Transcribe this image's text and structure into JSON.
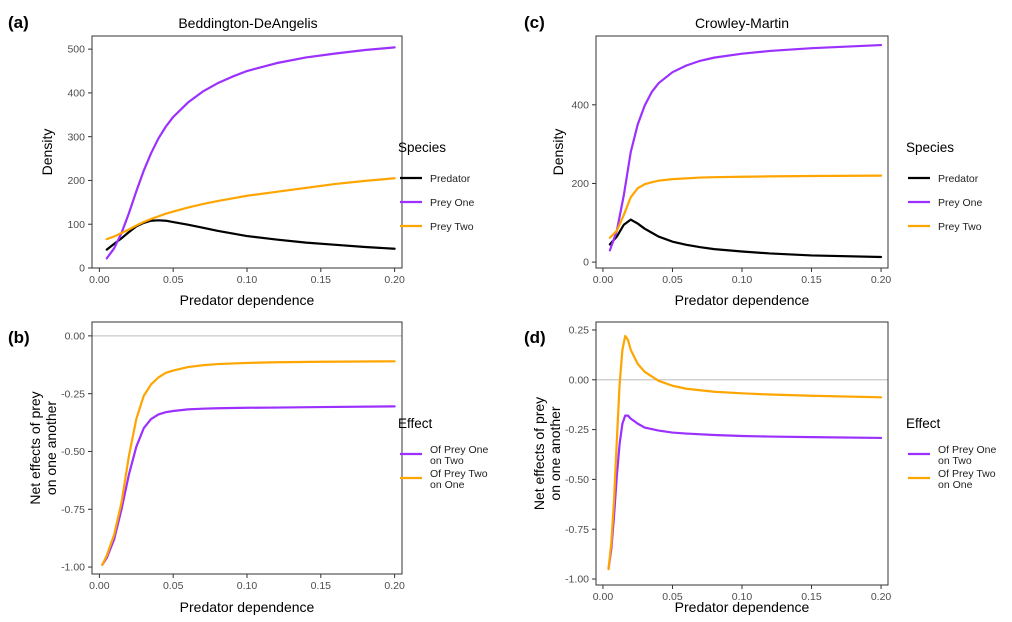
{
  "chart_data": [
    {
      "panel": "(a)",
      "type": "line",
      "title": "Beddington-DeAngelis",
      "xlabel": "Predator dependence",
      "ylabel": "Density",
      "xlim": [
        -0.005,
        0.205
      ],
      "ylim": [
        0,
        530
      ],
      "xticks": [
        0.0,
        0.05,
        0.1,
        0.15,
        0.2
      ],
      "xtick_labels": [
        "0.00",
        "0.05",
        "0.10",
        "0.15",
        "0.20"
      ],
      "yticks": [
        0,
        100,
        200,
        300,
        400,
        500
      ],
      "ytick_labels": [
        "0",
        "100",
        "200",
        "300",
        "400",
        "500"
      ],
      "zero_line": false,
      "legend": {
        "title": "Species",
        "placement": "right"
      },
      "series": [
        {
          "name": "Predator",
          "color": "#000000",
          "x": [
            0.005,
            0.01,
            0.015,
            0.02,
            0.025,
            0.03,
            0.035,
            0.04,
            0.045,
            0.05,
            0.06,
            0.07,
            0.08,
            0.09,
            0.1,
            0.12,
            0.14,
            0.16,
            0.18,
            0.2
          ],
          "y": [
            42,
            55,
            68,
            82,
            95,
            103,
            108,
            109,
            108,
            105,
            99,
            92,
            85,
            79,
            73,
            65,
            58,
            53,
            48,
            44
          ]
        },
        {
          "name": "Prey One",
          "color": "#9b30ff",
          "x": [
            0.005,
            0.01,
            0.015,
            0.02,
            0.025,
            0.03,
            0.035,
            0.04,
            0.045,
            0.05,
            0.06,
            0.07,
            0.08,
            0.09,
            0.1,
            0.12,
            0.14,
            0.16,
            0.18,
            0.2
          ],
          "y": [
            22,
            45,
            80,
            125,
            175,
            222,
            262,
            296,
            323,
            345,
            378,
            403,
            422,
            437,
            450,
            468,
            481,
            490,
            498,
            504
          ]
        },
        {
          "name": "Prey Two",
          "color": "#ffa500",
          "x": [
            0.005,
            0.01,
            0.015,
            0.02,
            0.025,
            0.03,
            0.035,
            0.04,
            0.045,
            0.05,
            0.06,
            0.07,
            0.08,
            0.09,
            0.1,
            0.12,
            0.14,
            0.16,
            0.18,
            0.2
          ],
          "y": [
            66,
            72,
            80,
            88,
            97,
            105,
            112,
            118,
            124,
            129,
            138,
            146,
            153,
            159,
            165,
            174,
            183,
            192,
            199,
            205
          ]
        }
      ]
    },
    {
      "panel": "(b)",
      "type": "line",
      "title": "",
      "xlabel": "Predator dependence",
      "ylabel": "Net effects of prey on one another",
      "ylabel_lines": [
        "Net effects of prey",
        "on one another"
      ],
      "xlim": [
        -0.005,
        0.205
      ],
      "ylim": [
        -1.03,
        0.06
      ],
      "xticks": [
        0.0,
        0.05,
        0.1,
        0.15,
        0.2
      ],
      "xtick_labels": [
        "0.00",
        "0.05",
        "0.10",
        "0.15",
        "0.20"
      ],
      "yticks": [
        0.0,
        -0.25,
        -0.5,
        -0.75,
        -1.0
      ],
      "ytick_labels": [
        "0.00",
        "-0.25",
        "-0.50",
        "-0.75",
        "-1.00"
      ],
      "zero_line": true,
      "legend": {
        "title": "Effect",
        "placement": "right"
      },
      "series": [
        {
          "name": "Of Prey One on Two",
          "name_lines": [
            "Of Prey One",
            "on Two"
          ],
          "color": "#9b30ff",
          "x": [
            0.002,
            0.005,
            0.01,
            0.015,
            0.02,
            0.025,
            0.03,
            0.035,
            0.04,
            0.045,
            0.05,
            0.06,
            0.07,
            0.08,
            0.1,
            0.12,
            0.15,
            0.2
          ],
          "y": [
            -0.99,
            -0.96,
            -0.88,
            -0.75,
            -0.6,
            -0.48,
            -0.4,
            -0.36,
            -0.34,
            -0.33,
            -0.325,
            -0.318,
            -0.315,
            -0.313,
            -0.311,
            -0.31,
            -0.308,
            -0.305
          ]
        },
        {
          "name": "Of Prey Two on One",
          "name_lines": [
            "Of Prey Two",
            "on One"
          ],
          "color": "#ffa500",
          "x": [
            0.002,
            0.005,
            0.01,
            0.015,
            0.02,
            0.025,
            0.03,
            0.035,
            0.04,
            0.045,
            0.05,
            0.06,
            0.07,
            0.08,
            0.1,
            0.12,
            0.15,
            0.2
          ],
          "y": [
            -0.99,
            -0.95,
            -0.86,
            -0.72,
            -0.52,
            -0.36,
            -0.26,
            -0.21,
            -0.18,
            -0.16,
            -0.15,
            -0.135,
            -0.127,
            -0.122,
            -0.117,
            -0.114,
            -0.112,
            -0.11
          ]
        }
      ]
    },
    {
      "panel": "(c)",
      "type": "line",
      "title": "Crowley-Martin",
      "xlabel": "Predator dependence",
      "ylabel": "Density",
      "xlim": [
        -0.005,
        0.205
      ],
      "ylim": [
        -15,
        575
      ],
      "xticks": [
        0.0,
        0.05,
        0.1,
        0.15,
        0.2
      ],
      "xtick_labels": [
        "0.00",
        "0.05",
        "0.10",
        "0.15",
        "0.20"
      ],
      "yticks": [
        0,
        200,
        400
      ],
      "ytick_labels": [
        "0",
        "200",
        "400"
      ],
      "zero_line": false,
      "legend": {
        "title": "Species",
        "placement": "right"
      },
      "series": [
        {
          "name": "Predator",
          "color": "#000000",
          "x": [
            0.005,
            0.01,
            0.015,
            0.02,
            0.025,
            0.03,
            0.035,
            0.04,
            0.05,
            0.06,
            0.07,
            0.08,
            0.1,
            0.12,
            0.15,
            0.2
          ],
          "y": [
            45,
            65,
            95,
            108,
            98,
            85,
            75,
            65,
            52,
            44,
            38,
            33,
            27,
            22,
            17,
            13
          ]
        },
        {
          "name": "Prey One",
          "color": "#9b30ff",
          "x": [
            0.005,
            0.01,
            0.015,
            0.02,
            0.025,
            0.03,
            0.035,
            0.04,
            0.05,
            0.06,
            0.07,
            0.08,
            0.1,
            0.12,
            0.15,
            0.2
          ],
          "y": [
            30,
            80,
            170,
            280,
            350,
            398,
            432,
            455,
            483,
            500,
            512,
            520,
            530,
            537,
            544,
            552
          ]
        },
        {
          "name": "Prey Two",
          "color": "#ffa500",
          "x": [
            0.005,
            0.01,
            0.015,
            0.02,
            0.025,
            0.03,
            0.035,
            0.04,
            0.05,
            0.06,
            0.07,
            0.08,
            0.1,
            0.12,
            0.15,
            0.2
          ],
          "y": [
            62,
            80,
            120,
            165,
            188,
            198,
            203,
            207,
            211,
            213,
            215,
            216,
            217,
            218,
            219,
            220
          ]
        }
      ]
    },
    {
      "panel": "(d)",
      "type": "line",
      "title": "",
      "xlabel": "Predator dependence",
      "ylabel": "Net effects of prey on one another",
      "ylabel_lines": [
        "Net effects of prey",
        "on one another"
      ],
      "xlim": [
        -0.005,
        0.205
      ],
      "ylim": [
        -1.03,
        0.29
      ],
      "xticks": [
        0.0,
        0.05,
        0.1,
        0.15,
        0.2
      ],
      "xtick_labels": [
        "0.00",
        "0.05",
        "0.10",
        "0.15",
        "0.20"
      ],
      "yticks": [
        0.25,
        0.0,
        -0.25,
        -0.5,
        -0.75,
        -1.0
      ],
      "ytick_labels": [
        "0.25",
        "0.00",
        "-0.25",
        "-0.50",
        "-0.75",
        "-1.00"
      ],
      "zero_line": true,
      "legend": {
        "title": "Effect",
        "placement": "right"
      },
      "series": [
        {
          "name": "Of Prey One on Two",
          "name_lines": [
            "Of Prey One",
            "on Two"
          ],
          "color": "#9b30ff",
          "x": [
            0.004,
            0.006,
            0.008,
            0.01,
            0.012,
            0.014,
            0.016,
            0.018,
            0.02,
            0.025,
            0.03,
            0.04,
            0.05,
            0.06,
            0.08,
            0.1,
            0.12,
            0.15,
            0.2
          ],
          "y": [
            -0.95,
            -0.85,
            -0.68,
            -0.48,
            -0.32,
            -0.22,
            -0.18,
            -0.18,
            -0.195,
            -0.22,
            -0.24,
            -0.255,
            -0.265,
            -0.27,
            -0.277,
            -0.282,
            -0.285,
            -0.288,
            -0.292
          ]
        },
        {
          "name": "Of Prey Two on One",
          "name_lines": [
            "Of Prey Two",
            "on One"
          ],
          "color": "#ffa500",
          "x": [
            0.004,
            0.006,
            0.008,
            0.01,
            0.012,
            0.014,
            0.016,
            0.018,
            0.02,
            0.025,
            0.03,
            0.04,
            0.05,
            0.06,
            0.08,
            0.1,
            0.12,
            0.15,
            0.2
          ],
          "y": [
            -0.95,
            -0.82,
            -0.6,
            -0.3,
            -0.02,
            0.15,
            0.22,
            0.2,
            0.15,
            0.08,
            0.04,
            -0.005,
            -0.03,
            -0.045,
            -0.06,
            -0.068,
            -0.074,
            -0.08,
            -0.088
          ]
        }
      ]
    }
  ]
}
